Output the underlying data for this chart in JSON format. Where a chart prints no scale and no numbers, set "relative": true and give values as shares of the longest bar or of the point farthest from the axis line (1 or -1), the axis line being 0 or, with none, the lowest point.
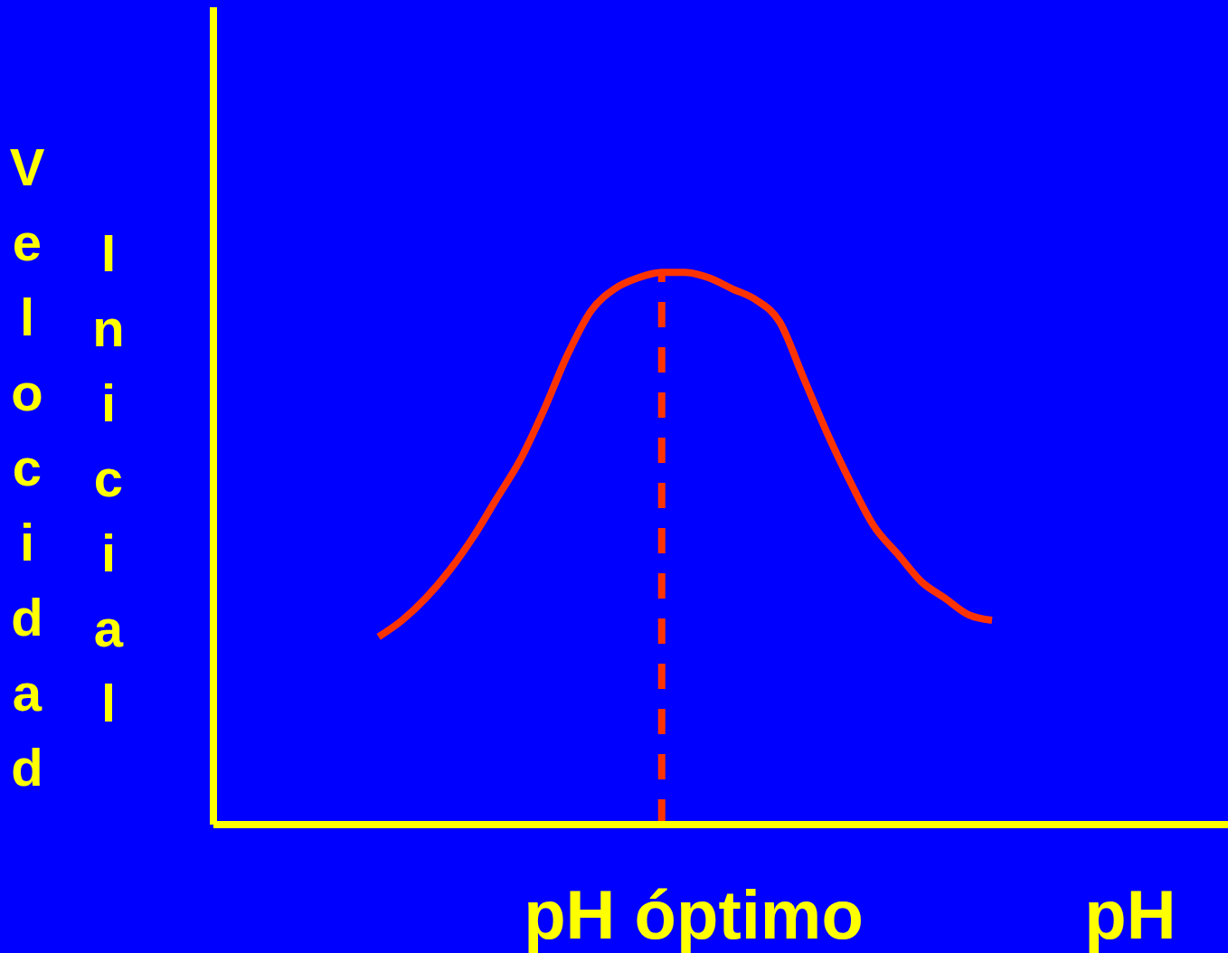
{
  "chart_data": {
    "type": "line",
    "relative": true,
    "xlabel": "pH",
    "ylabel": "Velocidad Inicial",
    "categories": [
      null,
      null,
      null,
      null,
      null,
      null,
      null,
      null,
      null,
      null,
      null,
      null,
      null,
      null,
      null,
      null,
      null,
      null,
      null,
      null,
      null,
      null,
      null,
      null,
      null,
      null,
      null,
      null,
      null,
      null,
      null,
      null,
      null,
      null,
      null,
      null,
      null,
      null,
      null,
      null,
      null,
      null,
      null,
      null
    ],
    "series": [
      {
        "color": "#ff3300",
        "values": [
          null,
          null,
          null,
          null,
          null,
          null,
          null,
          0.34,
          0.37,
          0.41,
          0.46,
          0.52,
          0.59,
          0.66,
          0.75,
          0.85,
          0.93,
          0.97,
          0.99,
          1.0,
          1.0,
          0.99,
          0.97,
          0.95,
          0.91,
          0.81,
          0.71,
          0.62,
          0.54,
          0.49,
          0.44,
          0.41,
          0.38,
          0.37,
          null,
          null,
          null,
          null,
          null,
          null,
          null,
          null,
          null,
          null
        ]
      }
    ],
    "annotations": [
      "pH óptimo"
    ],
    "marker": "none",
    "line_style": "solid"
  }
}
